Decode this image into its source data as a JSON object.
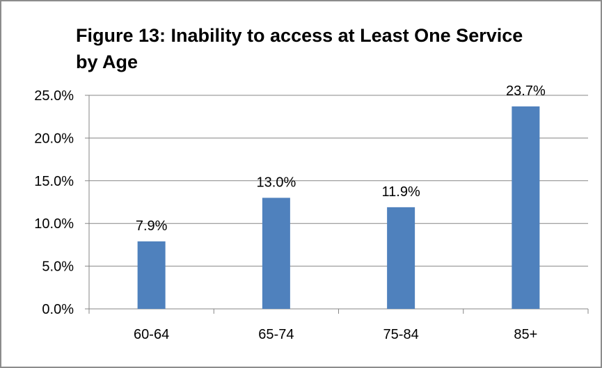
{
  "chart_data": {
    "type": "bar",
    "title_lines": [
      "Figure 13:  Inability to access at Least One Service",
      "by Age"
    ],
    "categories": [
      "60-64",
      "65-74",
      "75-84",
      "85+"
    ],
    "values": [
      7.9,
      13.0,
      11.9,
      23.7
    ],
    "data_labels": [
      "7.9%",
      "13.0%",
      "11.9%",
      "23.7%"
    ],
    "y_ticks": [
      "0.0%",
      "5.0%",
      "10.0%",
      "15.0%",
      "20.0%",
      "25.0%"
    ],
    "ylim": [
      0,
      25
    ],
    "xlabel": "",
    "ylabel": "",
    "grid": true,
    "legend": "none",
    "bar_color": "#4f81bd",
    "grid_color": "#868686"
  }
}
